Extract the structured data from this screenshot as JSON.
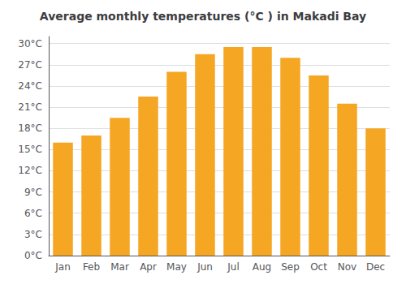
{
  "chart_data": {
    "type": "bar",
    "title": "Average monthly temperatures (°C ) in Makadi Bay",
    "categories": [
      "Jan",
      "Feb",
      "Mar",
      "Apr",
      "May",
      "Jun",
      "Jul",
      "Aug",
      "Sep",
      "Oct",
      "Nov",
      "Dec"
    ],
    "values": [
      16,
      17,
      19.5,
      22.5,
      26,
      28.5,
      29.5,
      29.5,
      28,
      25.5,
      21.5,
      18
    ],
    "color": "#F5A623",
    "ylim": [
      0,
      31
    ],
    "yticks": [
      {
        "value": 0,
        "label": "0°C"
      },
      {
        "value": 3,
        "label": "3°C"
      },
      {
        "value": 6,
        "label": "6°C"
      },
      {
        "value": 9,
        "label": "9°C"
      },
      {
        "value": 12,
        "label": "12°C"
      },
      {
        "value": 15,
        "label": "15°C"
      },
      {
        "value": 18,
        "label": "18°C"
      },
      {
        "value": 21,
        "label": "21°C"
      },
      {
        "value": 24,
        "label": "24°C"
      },
      {
        "value": 27,
        "label": "27°C"
      },
      {
        "value": 30,
        "label": "30°C"
      }
    ],
    "grid": true
  }
}
